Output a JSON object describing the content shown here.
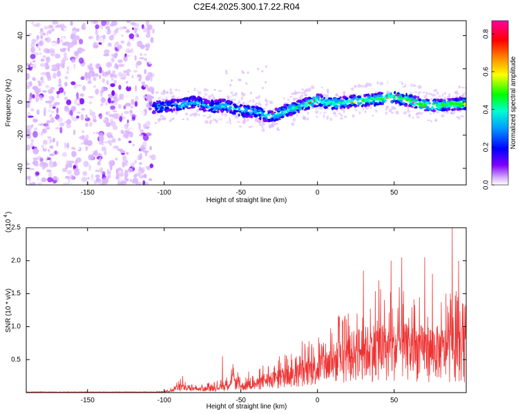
{
  "title": "C2E4.2025.300.17.22.R04",
  "chart_data": [
    {
      "type": "heatmap",
      "panel": "spectrogram",
      "xlabel": "Height of straight line (km)",
      "ylabel": "Frequency (Hz)",
      "xlim": [
        -190,
        97
      ],
      "ylim": [
        -50,
        49
      ],
      "xticks": [
        -150,
        -100,
        -50,
        0,
        50
      ],
      "yticks": [
        -40,
        -20,
        0,
        20,
        40
      ],
      "colorbar": {
        "label": "Normalized spectral amplitude",
        "range": [
          0.0,
          0.87
        ],
        "ticks": [
          0.0,
          0.2,
          0.4,
          0.6,
          0.8
        ],
        "colormap": [
          "#ffffff",
          "#d9b3ff",
          "#8000ff",
          "#0000ff",
          "#00a0ff",
          "#00ffd0",
          "#00ff00",
          "#ffff00",
          "#ff8000",
          "#ff0000",
          "#ff00a0"
        ]
      },
      "noise_region_x": [
        -190,
        -107
      ],
      "signal_region_x": [
        -107,
        97
      ],
      "signal_trace": {
        "x": [
          -105,
          -90,
          -80,
          -70,
          -60,
          -50,
          -40,
          -30,
          -20,
          -10,
          0,
          10,
          20,
          30,
          40,
          50,
          60,
          70,
          80,
          90,
          95
        ],
        "frequency": [
          -3,
          -2,
          0,
          -3,
          -2,
          -5,
          -6,
          -9,
          -5,
          -2,
          1,
          -1,
          0,
          1,
          2,
          3,
          1,
          -2,
          -2,
          -1,
          -1
        ]
      }
    },
    {
      "type": "line",
      "panel": "snr",
      "xlabel": "Height of straight line (km)",
      "ylabel": "SNR (10 * v/v)",
      "scale_label": "(x10",
      "scale_exponent": "4",
      "xlim": [
        -190,
        97
      ],
      "ylim": [
        0,
        2.5
      ],
      "xticks": [
        -150,
        -100,
        -50,
        0,
        50
      ],
      "yticks": [
        0.5,
        1.0,
        1.5,
        2.0,
        2.5
      ],
      "series": [
        {
          "color": "#ee3333",
          "x": [
            -190,
            -150,
            -110,
            -100,
            -95,
            -90,
            -85,
            -80,
            -70,
            -60,
            -55,
            -50,
            -45,
            -40,
            -35,
            -30,
            -25,
            -20,
            -15,
            -10,
            -5,
            0,
            5,
            10,
            15,
            20,
            25,
            30,
            35,
            40,
            45,
            50,
            55,
            60,
            65,
            70,
            75,
            80,
            85,
            90,
            95
          ],
          "envelope": [
            0.005,
            0.005,
            0.01,
            0.02,
            0.05,
            0.15,
            0.1,
            0.08,
            0.1,
            0.15,
            0.3,
            0.15,
            0.18,
            0.2,
            0.3,
            0.3,
            0.35,
            0.45,
            0.4,
            0.5,
            0.55,
            0.6,
            0.65,
            0.75,
            0.8,
            0.85,
            1.0,
            1.0,
            1.05,
            1.1,
            1.0,
            1.05,
            1.1,
            1.0,
            1.05,
            1.0,
            1.05,
            1.0,
            1.0,
            1.05,
            1.0
          ],
          "peaks": [
            {
              "x": -88,
              "y": 0.25
            },
            {
              "x": -62,
              "y": 0.55
            },
            {
              "x": -45,
              "y": 0.32
            },
            {
              "x": -25,
              "y": 0.55
            },
            {
              "x": -10,
              "y": 0.78
            },
            {
              "x": 20,
              "y": 1.2
            },
            {
              "x": 30,
              "y": 1.85
            },
            {
              "x": 40,
              "y": 1.7
            },
            {
              "x": 48,
              "y": 2.0
            },
            {
              "x": 55,
              "y": 2.05
            },
            {
              "x": 70,
              "y": 2.05
            },
            {
              "x": 75,
              "y": 1.8
            },
            {
              "x": 88,
              "y": 2.5
            },
            {
              "x": 92,
              "y": 2.0
            }
          ]
        }
      ]
    }
  ]
}
